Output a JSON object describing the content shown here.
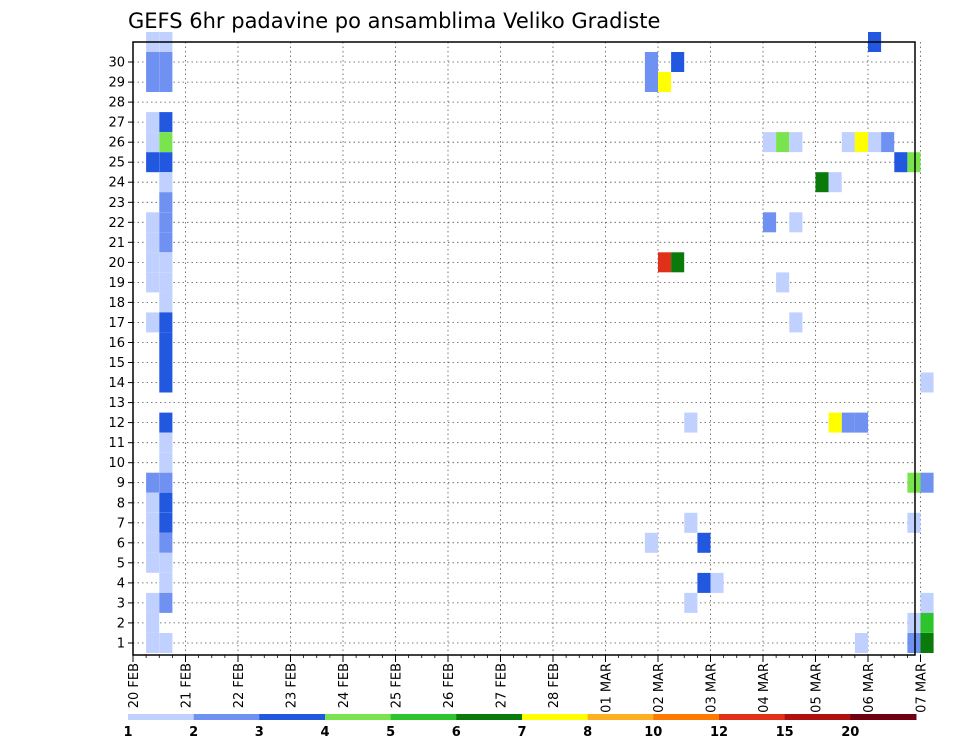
{
  "chart_data": {
    "type": "heatmap",
    "title": "GEFS 6hr padavine po ansamblima Veliko Gradiste",
    "xlabel": "",
    "ylabel": "",
    "x_tick_labels": [
      "20 FEB",
      "21 FEB",
      "22 FEB",
      "23 FEB",
      "24 FEB",
      "25 FEB",
      "26 FEB",
      "27 FEB",
      "28 FEB",
      "01 MAR",
      "02 MAR",
      "03 MAR",
      "04 MAR",
      "05 MAR",
      "06 MAR",
      "07 MAR"
    ],
    "y_tick_labels": [
      "1",
      "2",
      "3",
      "4",
      "5",
      "6",
      "7",
      "8",
      "9",
      "10",
      "11",
      "12",
      "13",
      "14",
      "15",
      "16",
      "17",
      "18",
      "19",
      "20",
      "21",
      "22",
      "23",
      "24",
      "25",
      "26",
      "27",
      "28",
      "29",
      "30"
    ],
    "time_step": "6hr",
    "grid": "dotted",
    "colorbar": {
      "position": "bottom",
      "tick_labels": [
        "1",
        "2",
        "3",
        "4",
        "5",
        "6",
        "7",
        "8",
        "10",
        "12",
        "15",
        "20"
      ],
      "colors": [
        "#c0d0ff",
        "#6f92f2",
        "#2257e0",
        "#7ae44f",
        "#2ec42e",
        "#0a7a0a",
        "#ffff00",
        "#ffb020",
        "#ff7a00",
        "#e03018",
        "#b01010",
        "#700010"
      ]
    },
    "cells": [
      {
        "x": "20 FEB 06",
        "y": 30,
        "level": 1
      },
      {
        "x": "20 FEB 12",
        "y": 30,
        "level": 1
      },
      {
        "x": "20 FEB 06",
        "y": 29,
        "level": 2
      },
      {
        "x": "20 FEB 12",
        "y": 29,
        "level": 2
      },
      {
        "x": "20 FEB 06",
        "y": 28,
        "level": 2
      },
      {
        "x": "20 FEB 12",
        "y": 28,
        "level": 2
      },
      {
        "x": "20 FEB 06",
        "y": 26,
        "level": 1
      },
      {
        "x": "20 FEB 12",
        "y": 26,
        "level": 3
      },
      {
        "x": "20 FEB 06",
        "y": 25,
        "level": 1
      },
      {
        "x": "20 FEB 12",
        "y": 25,
        "level": 4
      },
      {
        "x": "20 FEB 06",
        "y": 24,
        "level": 3
      },
      {
        "x": "20 FEB 12",
        "y": 24,
        "level": 3
      },
      {
        "x": "20 FEB 12",
        "y": 23,
        "level": 1
      },
      {
        "x": "20 FEB 12",
        "y": 22,
        "level": 2
      },
      {
        "x": "20 FEB 06",
        "y": 21,
        "level": 1
      },
      {
        "x": "20 FEB 12",
        "y": 21,
        "level": 2
      },
      {
        "x": "20 FEB 06",
        "y": 20,
        "level": 1
      },
      {
        "x": "20 FEB 12",
        "y": 20,
        "level": 2
      },
      {
        "x": "20 FEB 06",
        "y": 19,
        "level": 1
      },
      {
        "x": "20 FEB 12",
        "y": 19,
        "level": 1
      },
      {
        "x": "20 FEB 06",
        "y": 18,
        "level": 1
      },
      {
        "x": "20 FEB 12",
        "y": 18,
        "level": 1
      },
      {
        "x": "20 FEB 12",
        "y": 17,
        "level": 1
      },
      {
        "x": "20 FEB 06",
        "y": 16,
        "level": 1
      },
      {
        "x": "20 FEB 12",
        "y": 16,
        "level": 3
      },
      {
        "x": "20 FEB 12",
        "y": 15,
        "level": 3
      },
      {
        "x": "20 FEB 12",
        "y": 14,
        "level": 3
      },
      {
        "x": "20 FEB 12",
        "y": 13,
        "level": 3
      },
      {
        "x": "20 FEB 12",
        "y": 11,
        "level": 3
      },
      {
        "x": "20 FEB 12",
        "y": 10,
        "level": 1
      },
      {
        "x": "20 FEB 12",
        "y": 9,
        "level": 1
      },
      {
        "x": "20 FEB 06",
        "y": 8,
        "level": 2
      },
      {
        "x": "20 FEB 12",
        "y": 8,
        "level": 2
      },
      {
        "x": "20 FEB 06",
        "y": 7,
        "level": 1
      },
      {
        "x": "20 FEB 12",
        "y": 7,
        "level": 3
      },
      {
        "x": "20 FEB 06",
        "y": 6,
        "level": 1
      },
      {
        "x": "20 FEB 12",
        "y": 6,
        "level": 3
      },
      {
        "x": "20 FEB 06",
        "y": 5,
        "level": 1
      },
      {
        "x": "20 FEB 12",
        "y": 5,
        "level": 2
      },
      {
        "x": "20 FEB 06",
        "y": 4,
        "level": 1
      },
      {
        "x": "20 FEB 12",
        "y": 4,
        "level": 1
      },
      {
        "x": "20 FEB 12",
        "y": 3,
        "level": 1
      },
      {
        "x": "20 FEB 06",
        "y": 2,
        "level": 1
      },
      {
        "x": "20 FEB 12",
        "y": 2,
        "level": 2
      },
      {
        "x": "20 FEB 06",
        "y": 1,
        "level": 1
      },
      {
        "x": "20 FEB 06",
        "y": 0,
        "level": 1
      },
      {
        "x": "20 FEB 12",
        "y": 0,
        "level": 1
      },
      {
        "x": "01 MAR 18",
        "y": 29,
        "level": 2
      },
      {
        "x": "02 MAR 06",
        "y": 29,
        "level": 3
      },
      {
        "x": "01 MAR 18",
        "y": 28,
        "level": 2
      },
      {
        "x": "02 MAR 00",
        "y": 28,
        "level": 7
      },
      {
        "x": "02 MAR 00",
        "y": 19,
        "level": 10
      },
      {
        "x": "02 MAR 06",
        "y": 19,
        "level": 6
      },
      {
        "x": "02 MAR 12",
        "y": 11,
        "level": 1
      },
      {
        "x": "02 MAR 12",
        "y": 6,
        "level": 1
      },
      {
        "x": "01 MAR 18",
        "y": 5,
        "level": 1
      },
      {
        "x": "02 MAR 18",
        "y": 5,
        "level": 3
      },
      {
        "x": "02 MAR 18",
        "y": 3,
        "level": 3
      },
      {
        "x": "03 MAR 00",
        "y": 3,
        "level": 1
      },
      {
        "x": "02 MAR 12",
        "y": 2,
        "level": 1
      },
      {
        "x": "04 MAR 00",
        "y": 25,
        "level": 1
      },
      {
        "x": "04 MAR 06",
        "y": 25,
        "level": 4
      },
      {
        "x": "04 MAR 12",
        "y": 25,
        "level": 1
      },
      {
        "x": "05 MAR 12",
        "y": 25,
        "level": 1
      },
      {
        "x": "05 MAR 18",
        "y": 25,
        "level": 7
      },
      {
        "x": "06 MAR 00",
        "y": 25,
        "level": 1
      },
      {
        "x": "06 MAR 06",
        "y": 25,
        "level": 2
      },
      {
        "x": "06 MAR 00",
        "y": 30,
        "level": 3
      },
      {
        "x": "06 MAR 12",
        "y": 24,
        "level": 3
      },
      {
        "x": "06 MAR 18",
        "y": 24,
        "level": 4
      },
      {
        "x": "05 MAR 00",
        "y": 23,
        "level": 6
      },
      {
        "x": "05 MAR 06",
        "y": 23,
        "level": 1
      },
      {
        "x": "04 MAR 00",
        "y": 21,
        "level": 2
      },
      {
        "x": "04 MAR 12",
        "y": 21,
        "level": 1
      },
      {
        "x": "04 MAR 06",
        "y": 18,
        "level": 1
      },
      {
        "x": "04 MAR 12",
        "y": 16,
        "level": 1
      },
      {
        "x": "05 MAR 06",
        "y": 11,
        "level": 7
      },
      {
        "x": "05 MAR 12",
        "y": 11,
        "level": 2
      },
      {
        "x": "05 MAR 18",
        "y": 11,
        "level": 2
      },
      {
        "x": "07 MAR 00",
        "y": 13,
        "level": 1
      },
      {
        "x": "06 MAR 18",
        "y": 8,
        "level": 4
      },
      {
        "x": "07 MAR 00",
        "y": 8,
        "level": 2
      },
      {
        "x": "06 MAR 18",
        "y": 6,
        "level": 1
      },
      {
        "x": "07 MAR 00",
        "y": 2,
        "level": 1
      },
      {
        "x": "06 MAR 18",
        "y": 1,
        "level": 1
      },
      {
        "x": "07 MAR 00",
        "y": 1,
        "level": 5
      },
      {
        "x": "06 MAR 18",
        "y": 0,
        "level": 2
      },
      {
        "x": "07 MAR 00",
        "y": 0,
        "level": 6
      },
      {
        "x": "05 MAR 18",
        "y": 0,
        "level": 1
      }
    ]
  }
}
